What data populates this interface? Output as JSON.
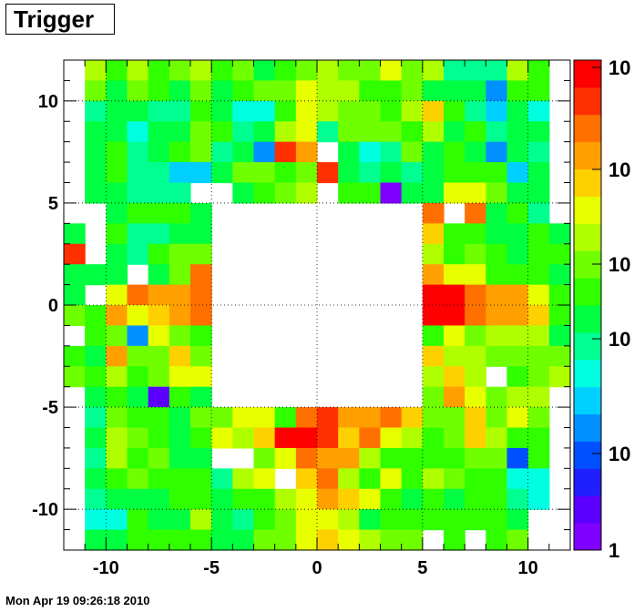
{
  "title": "Trigger",
  "footer": "Mon Apr 19 09:26:18 2010",
  "chart_data": {
    "type": "heatmap",
    "title": "Trigger",
    "xlabel": "",
    "ylabel": "",
    "xlim": [
      -12,
      12
    ],
    "ylim": [
      -12,
      12
    ],
    "x_ticks": [
      "-10",
      "-5",
      "0",
      "5",
      "10"
    ],
    "y_ticks": [
      "-10",
      "-5",
      "0",
      "5",
      "10"
    ],
    "grid": true,
    "z_scale": "log",
    "colorbar_ticks": [
      "10",
      "10",
      "10",
      "10",
      "10",
      "1"
    ],
    "bin_edges_x": [
      -12,
      -11,
      -10,
      -9,
      -8,
      -7,
      -6,
      -5,
      -4,
      -3,
      -2,
      -1,
      0,
      1,
      2,
      3,
      4,
      5,
      6,
      7,
      8,
      9,
      10,
      11,
      12
    ],
    "bin_edges_y": [
      -12,
      -11,
      -10,
      -9,
      -8,
      -7,
      -6,
      -5,
      -4,
      -3,
      -2,
      -1,
      0,
      1,
      2,
      3,
      4,
      5,
      6,
      7,
      8,
      9,
      10,
      11,
      12
    ],
    "palette": [
      "#7f00ff",
      "#5b00ff",
      "#2020ff",
      "#0050ff",
      "#0090ff",
      "#00d0ff",
      "#00ffe0",
      "#00ff90",
      "#00ff40",
      "#30ff00",
      "#70ff00",
      "#b0ff00",
      "#e8ff00",
      "#ffd000",
      "#ffa000",
      "#ff7000",
      "#ff3000",
      "#ff0000"
    ],
    "levels_rows_top_to_bottom": [
      [
        -1,
        11,
        9,
        11,
        9,
        10,
        11,
        9,
        10,
        8,
        9,
        10,
        11,
        10,
        10,
        12,
        10,
        11,
        7,
        7,
        7,
        11,
        9,
        -1
      ],
      [
        -1,
        10,
        8,
        10,
        9,
        8,
        10,
        8,
        9,
        10,
        10,
        12,
        11,
        11,
        9,
        9,
        10,
        8,
        8,
        8,
        4,
        9,
        9,
        -1
      ],
      [
        -1,
        7,
        8,
        8,
        7,
        7,
        9,
        8,
        6,
        6,
        9,
        12,
        11,
        10,
        10,
        9,
        11,
        13,
        9,
        7,
        5,
        8,
        6,
        -1
      ],
      [
        -1,
        8,
        8,
        6,
        8,
        8,
        10,
        9,
        7,
        8,
        11,
        12,
        7,
        10,
        10,
        10,
        9,
        11,
        8,
        9,
        7,
        8,
        8,
        -1
      ],
      [
        -1,
        8,
        9,
        7,
        8,
        9,
        10,
        7,
        8,
        4,
        16,
        14,
        -1,
        8,
        6,
        7,
        10,
        8,
        9,
        8,
        4,
        8,
        7,
        -1
      ],
      [
        -1,
        8,
        9,
        7,
        7,
        5,
        5,
        8,
        10,
        10,
        9,
        10,
        16,
        8,
        7,
        8,
        7,
        8,
        9,
        9,
        9,
        5,
        8,
        -1
      ],
      [
        -1,
        8,
        8,
        7,
        7,
        7,
        -1,
        -1,
        8,
        9,
        10,
        11,
        -1,
        9,
        9,
        0,
        8,
        8,
        12,
        12,
        10,
        8,
        8,
        -1
      ],
      [
        -1,
        -1,
        8,
        9,
        9,
        9,
        8,
        -1,
        -1,
        -1,
        -1,
        -1,
        -1,
        -1,
        -1,
        -1,
        -1,
        15,
        -1,
        15,
        8,
        9,
        7,
        -1
      ],
      [
        8,
        -1,
        9,
        7,
        7,
        8,
        8,
        -1,
        -1,
        -1,
        -1,
        -1,
        -1,
        -1,
        -1,
        -1,
        -1,
        13,
        9,
        9,
        8,
        8,
        9,
        8
      ],
      [
        16,
        -1,
        8,
        7,
        9,
        10,
        10,
        -1,
        -1,
        -1,
        -1,
        -1,
        -1,
        -1,
        -1,
        -1,
        -1,
        11,
        9,
        10,
        9,
        8,
        9,
        9
      ],
      [
        8,
        8,
        8,
        -1,
        8,
        10,
        15,
        -1,
        -1,
        -1,
        -1,
        -1,
        -1,
        -1,
        -1,
        -1,
        -1,
        14,
        12,
        12,
        9,
        9,
        9,
        8
      ],
      [
        8,
        -1,
        12,
        15,
        14,
        14,
        15,
        -1,
        -1,
        -1,
        -1,
        -1,
        -1,
        -1,
        -1,
        -1,
        -1,
        17,
        17,
        15,
        14,
        14,
        12,
        9
      ],
      [
        10,
        9,
        14,
        12,
        13,
        14,
        15,
        -1,
        -1,
        -1,
        -1,
        -1,
        -1,
        -1,
        -1,
        -1,
        -1,
        17,
        17,
        15,
        14,
        14,
        13,
        9
      ],
      [
        -1,
        9,
        10,
        4,
        12,
        10,
        9,
        -1,
        -1,
        -1,
        -1,
        -1,
        -1,
        -1,
        -1,
        -1,
        -1,
        9,
        12,
        10,
        11,
        11,
        11,
        8
      ],
      [
        9,
        8,
        14,
        10,
        10,
        13,
        10,
        -1,
        -1,
        -1,
        -1,
        -1,
        -1,
        -1,
        -1,
        -1,
        -1,
        13,
        11,
        11,
        10,
        10,
        10,
        10
      ],
      [
        10,
        9,
        11,
        9,
        10,
        12,
        12,
        -1,
        -1,
        -1,
        -1,
        -1,
        -1,
        -1,
        -1,
        -1,
        -1,
        11,
        13,
        11,
        -1,
        9,
        10,
        11
      ],
      [
        -1,
        8,
        9,
        8,
        1,
        9,
        8,
        -1,
        -1,
        -1,
        -1,
        -1,
        -1,
        -1,
        -1,
        -1,
        -1,
        10,
        14,
        12,
        10,
        11,
        11,
        -1
      ],
      [
        -1,
        7,
        10,
        9,
        9,
        8,
        10,
        10,
        12,
        12,
        9,
        15,
        16,
        14,
        14,
        15,
        13,
        10,
        10,
        13,
        10,
        12,
        10,
        -1
      ],
      [
        -1,
        8,
        11,
        10,
        9,
        8,
        9,
        12,
        11,
        13,
        17,
        17,
        16,
        13,
        15,
        12,
        11,
        9,
        10,
        13,
        11,
        9,
        9,
        -1
      ],
      [
        -1,
        7,
        11,
        9,
        10,
        8,
        8,
        -1,
        -1,
        10,
        12,
        15,
        14,
        14,
        11,
        9,
        9,
        9,
        9,
        10,
        10,
        3,
        9,
        -1
      ],
      [
        -1,
        8,
        9,
        10,
        9,
        9,
        9,
        7,
        11,
        12,
        -1,
        13,
        15,
        11,
        9,
        12,
        9,
        11,
        10,
        9,
        9,
        6,
        6,
        -1
      ],
      [
        -1,
        7,
        8,
        8,
        8,
        9,
        9,
        8,
        9,
        9,
        11,
        12,
        14,
        13,
        12,
        9,
        8,
        9,
        8,
        9,
        9,
        7,
        6,
        -1
      ],
      [
        -1,
        6,
        6,
        9,
        8,
        8,
        11,
        8,
        7,
        9,
        10,
        12,
        12,
        11,
        8,
        9,
        9,
        9,
        9,
        9,
        9,
        8,
        -1,
        -1
      ],
      [
        -1,
        8,
        8,
        9,
        9,
        9,
        9,
        8,
        8,
        10,
        10,
        12,
        13,
        12,
        11,
        10,
        10,
        -1,
        9,
        -1,
        9,
        10,
        -1,
        -1
      ]
    ]
  }
}
